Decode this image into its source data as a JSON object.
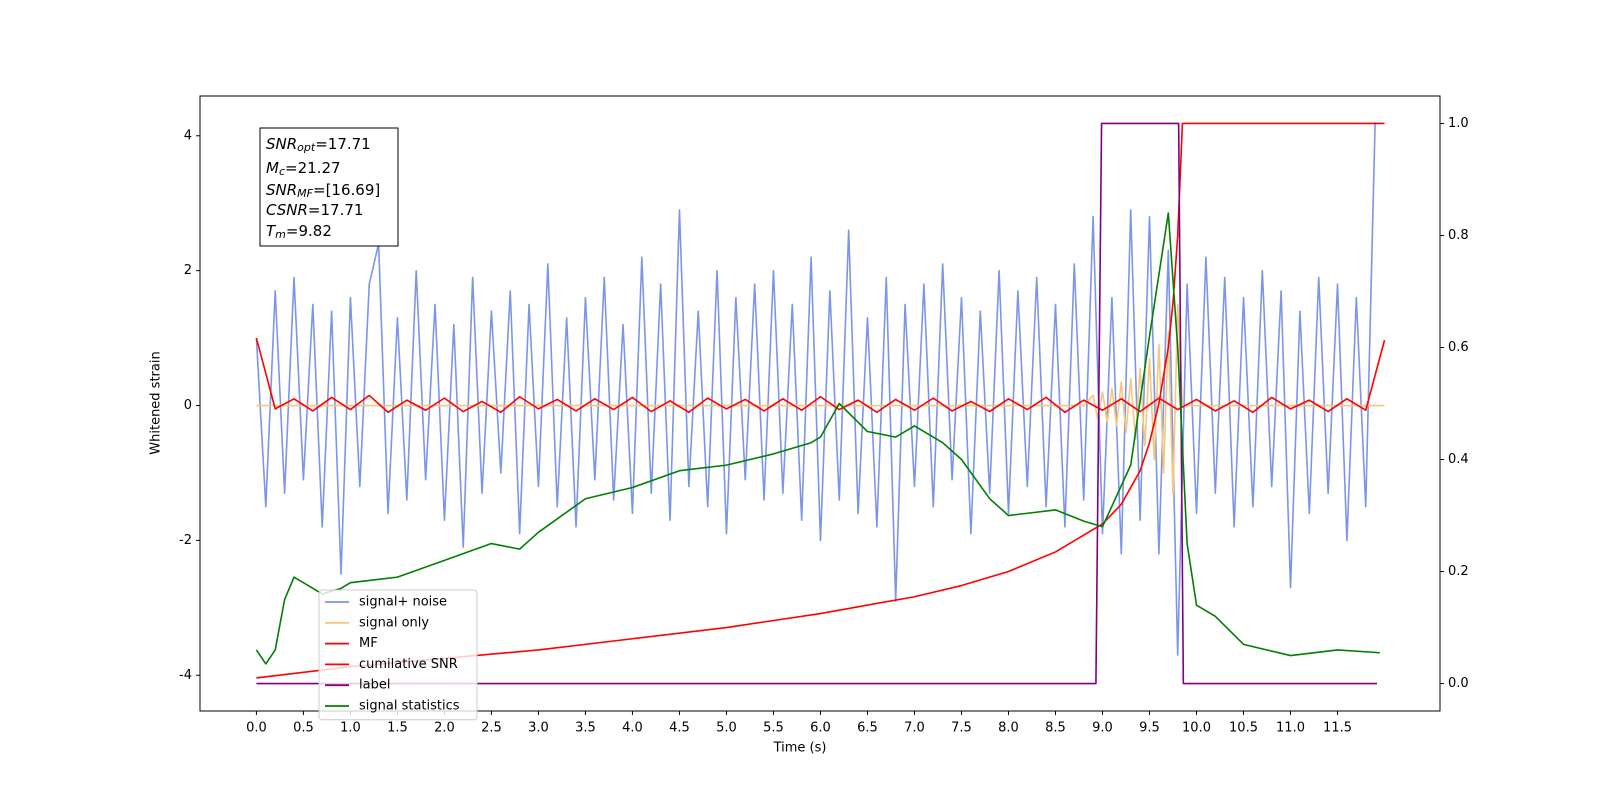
{
  "chart_data": {
    "type": "line",
    "xlabel": "Time (s)",
    "ylabel": "Whitened strain",
    "xlim": [
      -0.6,
      12.59
    ],
    "ylim": [
      -4.53,
      4.59
    ],
    "y2lim": [
      -0.049,
      1.049
    ],
    "xticks": [
      {
        "value": 0,
        "label": "0.0"
      },
      0.5,
      {
        "value": 1,
        "label": "1.0"
      },
      1.5,
      {
        "value": 2,
        "label": "2.0"
      },
      2.5,
      {
        "value": 3,
        "label": "3.0"
      },
      3.5,
      {
        "value": 4,
        "label": "4.0"
      },
      4.5,
      {
        "value": 5,
        "label": "5.0"
      },
      5.5,
      {
        "value": 6,
        "label": "6.0"
      },
      6.5,
      {
        "value": 7,
        "label": "7.0"
      },
      7.5,
      {
        "value": 8,
        "label": "8.0"
      },
      8.5,
      {
        "value": 9,
        "label": "9.0"
      },
      9.5,
      {
        "value": 10,
        "label": "10.0"
      },
      10.5,
      {
        "value": 11,
        "label": "11.0"
      },
      11.5
    ],
    "yticks": [
      -4,
      -2,
      0,
      2,
      4
    ],
    "y2ticks": [
      {
        "value": 0,
        "label": "0.0"
      },
      0.2,
      0.4,
      0.6,
      0.8,
      {
        "value": 1,
        "label": "1.0"
      }
    ],
    "legend": "lower left",
    "annotation": [
      {
        "symbol": "SNR",
        "sub": "opt",
        "text": "=17.71"
      },
      {
        "symbol": "M",
        "sub": "c",
        "text": "=21.27"
      },
      {
        "symbol": "SNR",
        "sub": "MF",
        "text": "=[16.69]"
      },
      {
        "symbol": "CSNR",
        "text": "=17.71"
      },
      {
        "symbol": "T",
        "sub": "m",
        "text": "=9.82"
      }
    ],
    "series": [
      {
        "name": "signal+ noise",
        "color": "#7b96e8",
        "x": [
          0.0,
          0.1,
          0.2,
          0.3,
          0.4,
          0.5,
          0.6,
          0.7,
          0.8,
          0.9,
          1.0,
          1.1,
          1.2,
          1.3,
          1.4,
          1.5,
          1.6,
          1.7,
          1.8,
          1.9,
          2.0,
          2.1,
          2.2,
          2.3,
          2.4,
          2.5,
          2.6,
          2.7,
          2.8,
          2.9,
          3.0,
          3.1,
          3.2,
          3.3,
          3.4,
          3.5,
          3.6,
          3.7,
          3.8,
          3.9,
          4.0,
          4.1,
          4.2,
          4.3,
          4.4,
          4.5,
          4.6,
          4.7,
          4.8,
          4.9,
          5.0,
          5.1,
          5.2,
          5.3,
          5.4,
          5.5,
          5.6,
          5.7,
          5.8,
          5.9,
          6.0,
          6.1,
          6.2,
          6.3,
          6.4,
          6.5,
          6.6,
          6.7,
          6.8,
          6.9,
          7.0,
          7.1,
          7.2,
          7.3,
          7.4,
          7.5,
          7.6,
          7.7,
          7.8,
          7.9,
          8.0,
          8.1,
          8.2,
          8.3,
          8.4,
          8.5,
          8.6,
          8.7,
          8.8,
          8.9,
          9.0,
          9.1,
          9.2,
          9.3,
          9.4,
          9.5,
          9.6,
          9.7,
          9.8,
          9.9,
          10.0,
          10.1,
          10.2,
          10.3,
          10.4,
          10.5,
          10.6,
          10.7,
          10.8,
          10.9,
          11.0,
          11.1,
          11.2,
          11.3,
          11.4,
          11.5,
          11.6,
          11.7,
          11.8,
          11.9
        ],
        "values": [
          1.0,
          -1.5,
          1.7,
          -1.3,
          1.9,
          -1.1,
          1.5,
          -1.8,
          1.4,
          -2.5,
          1.6,
          -1.2,
          1.8,
          2.4,
          -1.6,
          1.3,
          -1.4,
          2.0,
          -1.1,
          1.5,
          -1.7,
          1.2,
          -2.1,
          1.9,
          -1.3,
          1.4,
          -1.0,
          1.7,
          -1.9,
          1.5,
          -1.2,
          2.1,
          -1.5,
          1.3,
          -1.8,
          1.6,
          -1.1,
          1.9,
          -1.4,
          1.2,
          -1.6,
          2.2,
          -1.3,
          1.8,
          -1.7,
          2.9,
          -1.2,
          1.4,
          -1.5,
          2.0,
          -1.9,
          1.6,
          -1.1,
          1.8,
          -1.4,
          2.0,
          -1.3,
          1.5,
          -1.7,
          2.2,
          -2.0,
          1.7,
          -1.4,
          2.6,
          -1.6,
          1.3,
          -1.8,
          1.9,
          -2.9,
          1.5,
          -1.2,
          1.8,
          -1.5,
          2.1,
          -1.1,
          1.6,
          -1.9,
          1.4,
          -1.3,
          2.0,
          -1.6,
          1.7,
          -1.2,
          1.9,
          -1.5,
          1.5,
          -1.8,
          2.1,
          -1.4,
          2.8,
          -1.9,
          1.6,
          -2.2,
          2.9,
          -1.7,
          2.8,
          -2.2,
          2.3,
          -3.7,
          1.8,
          -1.6,
          2.2,
          -1.3,
          1.9,
          -1.8,
          1.6,
          -1.5,
          2.0,
          -1.2,
          1.7,
          -2.7,
          1.4,
          -1.6,
          1.9,
          -1.3,
          1.8,
          -2.0,
          1.6,
          -1.5,
          4.2
        ]
      },
      {
        "name": "signal only",
        "color": "#f5c77e",
        "x": [
          0,
          8.8,
          8.9,
          8.95,
          9.0,
          9.05,
          9.1,
          9.15,
          9.2,
          9.25,
          9.3,
          9.35,
          9.4,
          9.45,
          9.5,
          9.55,
          9.6,
          9.65,
          9.7,
          9.75,
          9.8,
          9.85,
          12
        ],
        "values": [
          0,
          0,
          0.15,
          -0.2,
          0.2,
          -0.25,
          0.25,
          -0.3,
          0.35,
          -0.4,
          0.4,
          -0.5,
          0.55,
          -0.6,
          0.7,
          -0.8,
          0.9,
          -1.0,
          1.1,
          -1.3,
          1.5,
          0,
          0
        ]
      },
      {
        "name": "MF",
        "color": "#ff0000",
        "x": [
          0,
          0.2,
          0.4,
          0.6,
          0.8,
          1.0,
          1.2,
          1.4,
          1.6,
          1.8,
          2.0,
          2.2,
          2.4,
          2.6,
          2.8,
          3.0,
          3.2,
          3.4,
          3.6,
          3.8,
          4.0,
          4.2,
          4.4,
          4.6,
          4.8,
          5.0,
          5.2,
          5.4,
          5.6,
          5.8,
          6.0,
          6.2,
          6.4,
          6.6,
          6.8,
          7.0,
          7.2,
          7.4,
          7.6,
          7.8,
          8.0,
          8.2,
          8.4,
          8.6,
          8.8,
          9.0,
          9.2,
          9.4,
          9.6,
          9.8,
          10.0,
          10.2,
          10.4,
          10.6,
          10.8,
          11.0,
          11.2,
          11.4,
          11.6,
          11.8,
          12.0
        ],
        "values": [
          1.0,
          -0.05,
          0.1,
          -0.08,
          0.12,
          -0.06,
          0.15,
          -0.1,
          0.08,
          -0.07,
          0.11,
          -0.09,
          0.06,
          -0.1,
          0.13,
          -0.05,
          0.09,
          -0.08,
          0.1,
          -0.06,
          0.12,
          -0.09,
          0.07,
          -0.1,
          0.11,
          -0.05,
          0.09,
          -0.08,
          0.1,
          -0.07,
          0.13,
          -0.06,
          0.08,
          -0.1,
          0.09,
          -0.07,
          0.11,
          -0.08,
          0.06,
          -0.09,
          0.1,
          -0.06,
          0.12,
          -0.1,
          0.08,
          -0.07,
          0.1,
          -0.09,
          0.11,
          -0.06,
          0.09,
          -0.08,
          0.07,
          -0.1,
          0.12,
          -0.05,
          0.08,
          -0.09,
          0.1,
          -0.07,
          0.97
        ]
      },
      {
        "name": "cumilative SNR",
        "color": "#ff0000",
        "axis": "y2",
        "x": [
          0,
          0.5,
          1,
          2,
          3,
          4,
          5,
          6,
          7,
          7.5,
          8,
          8.5,
          9,
          9.2,
          9.4,
          9.5,
          9.6,
          9.7,
          9.75,
          9.8,
          9.85,
          12
        ],
        "values": [
          0.01,
          0.02,
          0.03,
          0.045,
          0.06,
          0.08,
          0.1,
          0.125,
          0.155,
          0.175,
          0.2,
          0.235,
          0.285,
          0.32,
          0.38,
          0.43,
          0.5,
          0.6,
          0.68,
          0.8,
          1.0,
          1.0
        ]
      },
      {
        "name": "label",
        "color": "#800080",
        "axis": "y2",
        "x": [
          0,
          8.93,
          8.99,
          9.81,
          9.86,
          11.92
        ],
        "values": [
          0,
          0,
          1,
          1,
          0,
          0
        ]
      },
      {
        "name": "signal statistics",
        "color": "#008000",
        "axis": "y2",
        "x": [
          0,
          0.1,
          0.2,
          0.3,
          0.4,
          0.5,
          0.7,
          0.9,
          1.0,
          1.5,
          2.0,
          2.5,
          2.8,
          3.0,
          3.5,
          4.0,
          4.5,
          5.0,
          5.5,
          5.9,
          6.0,
          6.2,
          6.5,
          6.8,
          7.0,
          7.3,
          7.5,
          7.8,
          8.0,
          8.5,
          8.8,
          9.0,
          9.3,
          9.5,
          9.7,
          9.8,
          9.9,
          10.0,
          10.2,
          10.5,
          11.0,
          11.5,
          11.95
        ],
        "values": [
          0.06,
          0.035,
          0.06,
          0.15,
          0.19,
          0.18,
          0.16,
          0.17,
          0.18,
          0.19,
          0.22,
          0.25,
          0.24,
          0.27,
          0.33,
          0.35,
          0.38,
          0.39,
          0.41,
          0.43,
          0.44,
          0.5,
          0.45,
          0.44,
          0.46,
          0.43,
          0.4,
          0.33,
          0.3,
          0.31,
          0.29,
          0.28,
          0.39,
          0.62,
          0.84,
          0.6,
          0.25,
          0.14,
          0.12,
          0.07,
          0.05,
          0.06,
          0.055
        ]
      }
    ]
  }
}
